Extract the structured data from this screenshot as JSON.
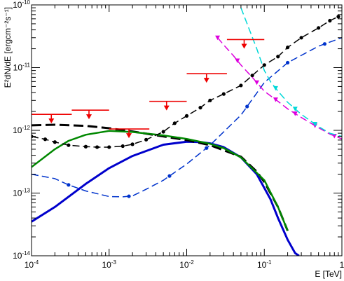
{
  "chart_data": {
    "type": "line",
    "title": "",
    "xlabel": "E [TeV]",
    "ylabel": "E²dN/dE [ergcm⁻²s⁻¹]",
    "xscale": "log",
    "yscale": "log",
    "xlim": [
      0.0001,
      1
    ],
    "ylim": [
      1e-14,
      1e-10
    ],
    "grid": false,
    "legend": "none",
    "x_ticks": [
      {
        "base": "10",
        "exp": "-4",
        "value": 0.0001
      },
      {
        "base": "10",
        "exp": "-3",
        "value": 0.001
      },
      {
        "base": "10",
        "exp": "-2",
        "value": 0.01
      },
      {
        "base": "10",
        "exp": "-1",
        "value": 0.1
      },
      {
        "base": "1",
        "exp": "",
        "value": 1
      }
    ],
    "y_ticks": [
      {
        "base": "10",
        "exp": "-14",
        "value": 1e-14
      },
      {
        "base": "10",
        "exp": "-13",
        "value": 1e-13
      },
      {
        "base": "10",
        "exp": "-12",
        "value": 1e-12
      },
      {
        "base": "10",
        "exp": "-11",
        "value": 1e-11
      },
      {
        "base": "10",
        "exp": "-10",
        "value": 1e-10
      }
    ],
    "series": [
      {
        "color": "#0000cc",
        "style": "solid",
        "width": 3,
        "x": [
          0.0001,
          0.0002,
          0.0005,
          0.001,
          0.002,
          0.005,
          0.01,
          0.015,
          0.02,
          0.03,
          0.05,
          0.08,
          0.12,
          0.15,
          0.2,
          0.25,
          0.28
        ],
        "y": [
          3.5e-14,
          6e-14,
          1.4e-13,
          2.5e-13,
          3.9e-13,
          5.9e-13,
          6.6e-13,
          6.5e-13,
          6.2e-13,
          5.4e-13,
          3.7e-13,
          2e-13,
          8e-14,
          4e-14,
          1.8e-14,
          1.1e-14,
          1e-14
        ]
      },
      {
        "color": "#000000",
        "style": "dashed",
        "width": 3,
        "x": [
          0.0001,
          0.0002,
          0.0005,
          0.001,
          0.002,
          0.005,
          0.01,
          0.02,
          0.05,
          0.08,
          0.1,
          0.15,
          0.2
        ],
        "y": [
          1.2e-12,
          1.23e-12,
          1.18e-12,
          1.08e-12,
          9.6e-13,
          8e-13,
          7e-13,
          5.8e-13,
          3.8e-13,
          2.2e-13,
          1.5e-13,
          6e-14,
          2.5e-14
        ]
      },
      {
        "color": "#008800",
        "style": "solid",
        "width": 2.5,
        "x": [
          0.0001,
          0.0002,
          0.0003,
          0.0005,
          0.001,
          0.002,
          0.003,
          0.005,
          0.01,
          0.02,
          0.03,
          0.05,
          0.1,
          0.15,
          0.2
        ],
        "y": [
          2.6e-13,
          5e-13,
          6.8e-13,
          8.5e-13,
          9.8e-13,
          9.4e-13,
          8.9e-13,
          8.3e-13,
          7.3e-13,
          6.1e-13,
          5.2e-13,
          3.7e-13,
          1.6e-13,
          6e-14,
          2.5e-14
        ]
      },
      {
        "color": "#000000",
        "style": "dashed-markers",
        "width": 1.5,
        "x": [
          0.0001,
          0.00015,
          0.0002,
          0.0003,
          0.0005,
          0.0007,
          0.001,
          0.0015,
          0.002,
          0.003,
          0.005,
          0.007,
          0.01,
          0.015,
          0.02,
          0.03,
          0.05,
          0.07,
          0.1,
          0.15,
          0.2,
          0.3,
          0.5,
          0.7,
          0.9
        ],
        "y": [
          8e-13,
          7.2e-13,
          6.5e-13,
          5.8e-13,
          5.5e-13,
          5.4e-13,
          5.4e-13,
          5.6e-13,
          6e-13,
          7.1e-13,
          9.5e-13,
          1.3e-12,
          1.7e-12,
          2.3e-12,
          3e-12,
          3.8e-12,
          5.2e-12,
          7.5e-12,
          1.1e-11,
          1.5e-11,
          2.1e-11,
          3e-11,
          4.3e-11,
          5.6e-11,
          6.5e-11
        ],
        "markers": [
          0.0001,
          0.00015,
          0.0002,
          0.0003,
          0.0005,
          0.0007,
          0.001,
          0.0015,
          0.002,
          0.003,
          0.005,
          0.007,
          0.01,
          0.015,
          0.02,
          0.03,
          0.05,
          0.07,
          0.1,
          0.15,
          0.2,
          0.3,
          0.5,
          0.7,
          0.9
        ]
      },
      {
        "color": "#0033cc",
        "style": "dashed-markers",
        "width": 1.5,
        "x": [
          0.0001,
          0.0002,
          0.0003,
          0.0005,
          0.001,
          0.0015,
          0.002,
          0.003,
          0.005,
          0.01,
          0.02,
          0.05,
          0.1,
          0.2,
          0.5,
          1
        ],
        "y": [
          2e-13,
          1.7e-13,
          1.35e-13,
          1.08e-13,
          8.8e-14,
          8.7e-14,
          9e-14,
          1.15e-13,
          1.6e-13,
          2.9e-13,
          5.8e-13,
          1.75e-12,
          5.8e-12,
          1.2e-11,
          2.2e-11,
          3e-11
        ],
        "markers": [
          0.0003,
          0.0018,
          0.006,
          0.018,
          0.06,
          0.2,
          0.6
        ]
      },
      {
        "color": "#dd00dd",
        "style": "dashed-markers",
        "width": 1.5,
        "x": [
          0.025,
          0.03,
          0.04,
          0.05,
          0.07,
          0.1,
          0.15,
          0.2,
          0.3,
          0.5,
          0.7,
          1
        ],
        "y": [
          3e-11,
          2.3e-11,
          1.55e-11,
          1.1e-11,
          7e-12,
          4.2e-12,
          2.9e-12,
          2.2e-12,
          1.6e-12,
          1.1e-12,
          8.7e-13,
          7.3e-13
        ],
        "markers": [
          0.025,
          0.045,
          0.08,
          0.14,
          0.25,
          0.45,
          0.8
        ]
      },
      {
        "color": "#00d8d8",
        "style": "dashed-markers",
        "width": 1.5,
        "x": [
          0.05,
          0.06,
          0.08,
          0.1,
          0.12,
          0.15,
          0.2,
          0.3,
          0.5,
          0.7,
          1
        ],
        "y": [
          9e-11,
          5e-11,
          2e-11,
          9e-12,
          6e-12,
          4.2e-12,
          2.8e-12,
          1.8e-12,
          1.15e-12,
          9e-13,
          8e-13
        ],
        "markers": [
          0.14,
          0.25,
          0.45
        ]
      }
    ],
    "upper_limits": {
      "color": "#ee0000",
      "points": [
        {
          "x": 0.00018,
          "xmin": 0.0001,
          "xmax": 0.00033,
          "y": 1.8e-12
        },
        {
          "x": 0.00055,
          "xmin": 0.00033,
          "xmax": 0.001,
          "y": 2.1e-12
        },
        {
          "x": 0.0018,
          "xmin": 0.001,
          "xmax": 0.0033,
          "y": 1.05e-12
        },
        {
          "x": 0.0055,
          "xmin": 0.0033,
          "xmax": 0.01,
          "y": 2.9e-12
        },
        {
          "x": 0.018,
          "xmin": 0.01,
          "xmax": 0.033,
          "y": 8e-12
        },
        {
          "x": 0.055,
          "xmin": 0.033,
          "xmax": 0.1,
          "y": 2.8e-11
        }
      ]
    }
  }
}
